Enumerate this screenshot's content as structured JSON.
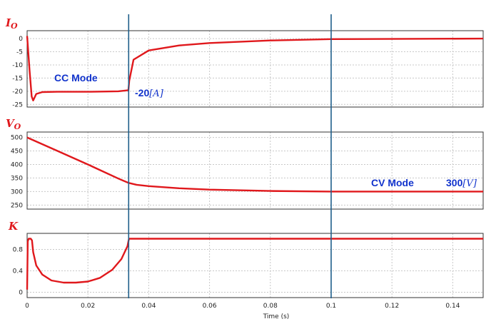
{
  "colors": {
    "trace": "#e0181c",
    "cursor": "#1f5f8b",
    "label": "#e0181c",
    "annotation": "#1133cc",
    "grid": "#c8c8c8",
    "frame": "#333333"
  },
  "chart_data": [
    {
      "type": "line",
      "title": "I",
      "title_sub": "O",
      "xlim": [
        0,
        0.15
      ],
      "ylim": [
        -26,
        3
      ],
      "yticks": [
        0,
        -5,
        -10,
        -15,
        -20,
        -25
      ],
      "x": [
        0,
        0.0008,
        0.0015,
        0.002,
        0.003,
        0.005,
        0.01,
        0.02,
        0.03,
        0.0333,
        0.0336,
        0.035,
        0.04,
        0.05,
        0.06,
        0.08,
        0.1,
        0.15
      ],
      "y": [
        1,
        -12,
        -22,
        -23.5,
        -21,
        -20.3,
        -20.2,
        -20.2,
        -20,
        -19.6,
        -16,
        -8,
        -4.5,
        -2.6,
        -1.7,
        -0.7,
        -0.2,
        0
      ],
      "annotations": [
        {
          "text": "CC Mode"
        },
        {
          "text_prefix": "-20",
          "text_unit": "[A]"
        }
      ]
    },
    {
      "type": "line",
      "title": "V",
      "title_sub": "O",
      "xlim": [
        0,
        0.15
      ],
      "ylim": [
        235,
        520
      ],
      "yticks": [
        500,
        450,
        400,
        350,
        300,
        250
      ],
      "x": [
        0,
        0.01,
        0.02,
        0.03,
        0.0333,
        0.036,
        0.04,
        0.05,
        0.06,
        0.08,
        0.1,
        0.15
      ],
      "y": [
        500,
        450,
        400,
        348,
        332,
        325,
        320,
        312,
        307,
        302,
        300,
        300
      ],
      "annotations": [
        {
          "text": "CV Mode"
        },
        {
          "text_prefix": "300",
          "text_unit": "[V]"
        }
      ]
    },
    {
      "type": "line",
      "title": "K",
      "xlim": [
        0,
        0.15
      ],
      "ylim": [
        -0.1,
        1.1
      ],
      "yticks": [
        0.8,
        0.4,
        0
      ],
      "xticks": [
        "0",
        "0.02",
        "0.04",
        "0.06",
        "0.08",
        "0.1",
        "0.12",
        "0.14"
      ],
      "xlabel": "Time (s)",
      "x": [
        0,
        0.0002,
        0.0005,
        0.0012,
        0.0016,
        0.002,
        0.003,
        0.005,
        0.008,
        0.012,
        0.016,
        0.02,
        0.024,
        0.028,
        0.031,
        0.033,
        0.0335,
        0.04,
        0.15
      ],
      "y": [
        0.05,
        0.95,
        1.0,
        1.0,
        0.97,
        0.75,
        0.5,
        0.33,
        0.22,
        0.18,
        0.18,
        0.2,
        0.27,
        0.42,
        0.62,
        0.86,
        1.0,
        1.0,
        1.0
      ]
    }
  ],
  "cursors_x": [
    0.0334,
    0.1
  ]
}
